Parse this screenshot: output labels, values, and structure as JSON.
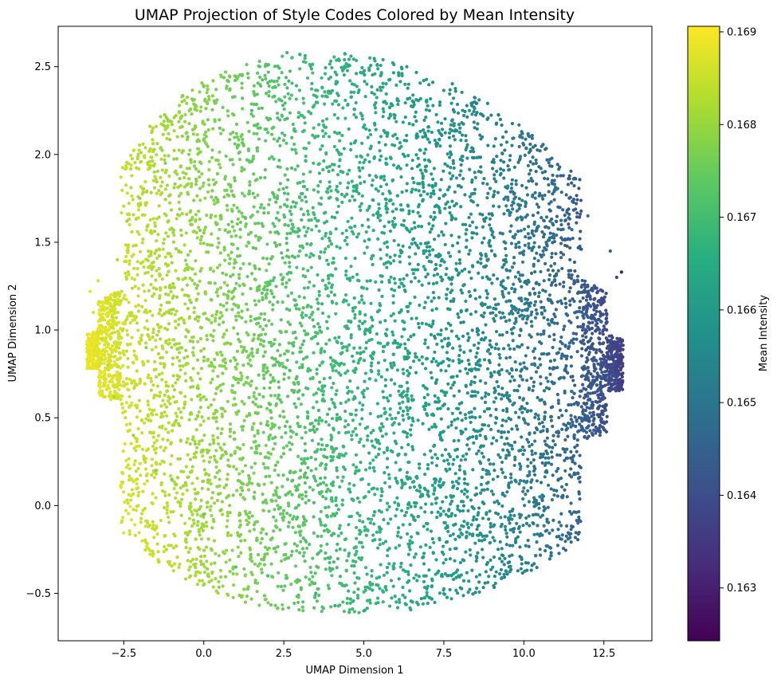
{
  "chart_data": {
    "type": "scatter",
    "title": "UMAP Projection of Style Codes Colored by Mean Intensity",
    "xlabel": "UMAP Dimension 1",
    "ylabel": "UMAP Dimension 2",
    "xlim": [
      -4.55,
      14.0
    ],
    "ylim": [
      -0.77,
      2.73
    ],
    "xticks": [
      -2.5,
      0.0,
      2.5,
      5.0,
      7.5,
      10.0,
      12.5
    ],
    "xtick_labels": [
      "−2.5",
      "0.0",
      "2.5",
      "5.0",
      "7.5",
      "10.0",
      "12.5"
    ],
    "yticks": [
      -0.5,
      0.0,
      0.5,
      1.0,
      1.5,
      2.0,
      2.5
    ],
    "ytick_labels": [
      "−0.5",
      "0.0",
      "0.5",
      "1.0",
      "1.5",
      "2.0",
      "2.5"
    ],
    "grid": false,
    "colormap": "viridis",
    "colorbar": {
      "label": "Mean Intensity",
      "min": 0.16243,
      "max": 0.16906,
      "ticks": [
        0.163,
        0.164,
        0.165,
        0.166,
        0.167,
        0.168,
        0.169
      ],
      "tick_labels": [
        "0.163",
        "0.164",
        "0.165",
        "0.166",
        "0.167",
        "0.168",
        "0.169"
      ]
    },
    "points_note_values": "representative sample of the dense point cloud; color value = Mean Intensity",
    "points": [
      {
        "x": -3.55,
        "y": 1.22,
        "c": 0.1688
      },
      {
        "x": -3.45,
        "y": 1.1,
        "c": 0.1687
      },
      {
        "x": -3.3,
        "y": 1.28,
        "c": 0.1687
      },
      {
        "x": -3.2,
        "y": 0.95,
        "c": 0.1685
      },
      {
        "x": -3.0,
        "y": 0.8,
        "c": 0.1683
      },
      {
        "x": -2.8,
        "y": 0.62,
        "c": 0.1682
      },
      {
        "x": -2.7,
        "y": 1.4,
        "c": 0.1682
      },
      {
        "x": -2.4,
        "y": 1.62,
        "c": 0.168
      },
      {
        "x": -2.2,
        "y": 0.4,
        "c": 0.168
      },
      {
        "x": -2.0,
        "y": 1.75,
        "c": 0.1679
      },
      {
        "x": -1.8,
        "y": 0.9,
        "c": 0.1679
      },
      {
        "x": -1.5,
        "y": 0.2,
        "c": 0.1678
      },
      {
        "x": -1.2,
        "y": 1.95,
        "c": 0.1677
      },
      {
        "x": -1.0,
        "y": 0.15,
        "c": 0.1677
      },
      {
        "x": -0.5,
        "y": 2.1,
        "c": 0.1676
      },
      {
        "x": 0.0,
        "y": -0.05,
        "c": 0.1675
      },
      {
        "x": 0.5,
        "y": 2.15,
        "c": 0.1674
      },
      {
        "x": 1.0,
        "y": -0.35,
        "c": 0.1672
      },
      {
        "x": 1.5,
        "y": 2.25,
        "c": 0.1671
      },
      {
        "x": 2.0,
        "y": -0.4,
        "c": 0.167
      },
      {
        "x": 2.6,
        "y": 2.58,
        "c": 0.1668
      },
      {
        "x": 3.0,
        "y": 2.57,
        "c": 0.1667
      },
      {
        "x": 3.5,
        "y": -0.5,
        "c": 0.1667
      },
      {
        "x": 4.1,
        "y": -0.57,
        "c": 0.1666
      },
      {
        "x": 4.6,
        "y": 2.56,
        "c": 0.1665
      },
      {
        "x": 5.0,
        "y": -0.6,
        "c": 0.1665
      },
      {
        "x": 5.6,
        "y": 2.54,
        "c": 0.1663
      },
      {
        "x": 6.4,
        "y": 2.4,
        "c": 0.1662
      },
      {
        "x": 6.8,
        "y": -0.53,
        "c": 0.1661
      },
      {
        "x": 7.8,
        "y": 2.32,
        "c": 0.166
      },
      {
        "x": 8.3,
        "y": 2.25,
        "c": 0.1659
      },
      {
        "x": 8.7,
        "y": -0.25,
        "c": 0.1658
      },
      {
        "x": 9.5,
        "y": 1.82,
        "c": 0.1656
      },
      {
        "x": 10.0,
        "y": 0.1,
        "c": 0.1655
      },
      {
        "x": 10.5,
        "y": 0.05,
        "c": 0.1654
      },
      {
        "x": 11.0,
        "y": 1.8,
        "c": 0.1652
      },
      {
        "x": 11.5,
        "y": 0.65,
        "c": 0.1651
      },
      {
        "x": 12.0,
        "y": 1.65,
        "c": 0.1649
      },
      {
        "x": 12.4,
        "y": 1.05,
        "c": 0.1647
      },
      {
        "x": 12.7,
        "y": 1.45,
        "c": 0.1644
      },
      {
        "x": 12.9,
        "y": 1.3,
        "c": 0.1638
      },
      {
        "x": 13.05,
        "y": 1.33,
        "c": 0.163
      }
    ]
  }
}
